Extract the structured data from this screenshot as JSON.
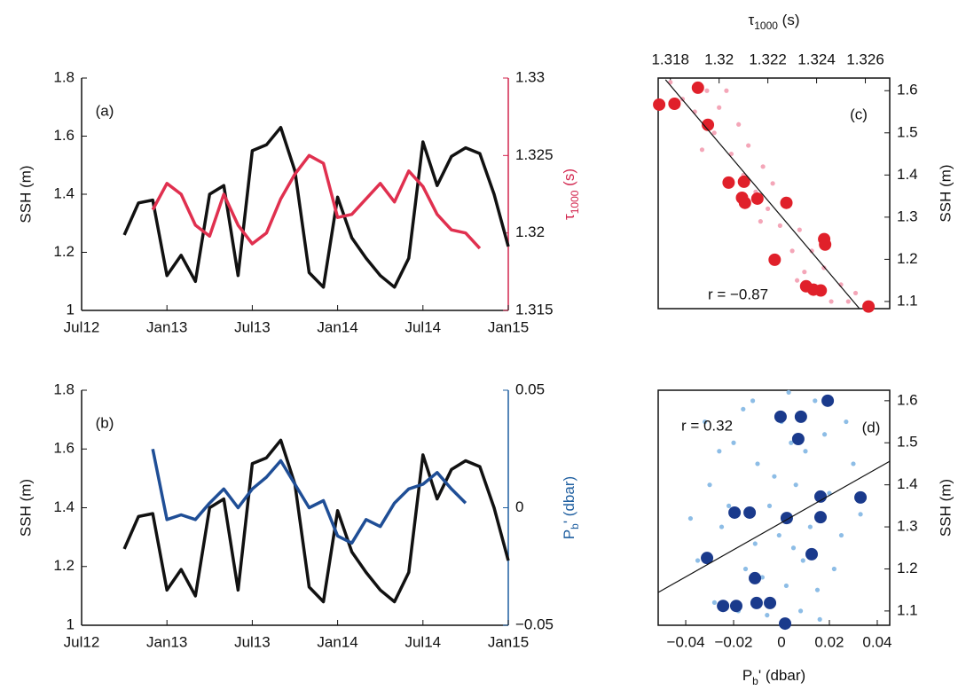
{
  "chart_data": [
    {
      "type": "line",
      "panel": "(a)",
      "ylabel": "SSH (m)",
      "y2label": {
        "main": "τ",
        "sub": "1000",
        "rest": " (s)"
      },
      "x": [
        "2012-10",
        "2012-11",
        "2012-12",
        "2013-01",
        "2013-02",
        "2013-03",
        "2013-04",
        "2013-05",
        "2013-06",
        "2013-07",
        "2013-08",
        "2013-09",
        "2013-10",
        "2013-11",
        "2013-12",
        "2014-01",
        "2014-02",
        "2014-03",
        "2014-04",
        "2014-05",
        "2014-06",
        "2014-07",
        "2014-08",
        "2014-09",
        "2014-10",
        "2014-11",
        "2014-12",
        "2015-01"
      ],
      "xlim": [
        "2012-07",
        "2015-01"
      ],
      "xticks": [
        {
          "value": "2012-07",
          "label": "Jul12"
        },
        {
          "value": "2013-01",
          "label": "Jan13"
        },
        {
          "value": "2013-07",
          "label": "Jul13"
        },
        {
          "value": "2014-01",
          "label": "Jan14"
        },
        {
          "value": "2014-07",
          "label": "Jul14"
        },
        {
          "value": "2015-01",
          "label": "Jan15"
        }
      ],
      "ylim": [
        1,
        1.8
      ],
      "yticks": [
        1,
        1.2,
        1.4,
        1.6,
        1.8
      ],
      "y2lim": [
        1.315,
        1.33
      ],
      "y2ticks": [
        1.315,
        1.32,
        1.325,
        1.33
      ],
      "y2color": "#d2264e",
      "series": [
        {
          "color": "#111111",
          "values": [
            1.26,
            1.37,
            1.38,
            1.12,
            1.19,
            1.1,
            1.4,
            1.43,
            1.12,
            1.55,
            1.57,
            1.63,
            1.48,
            1.13,
            1.08,
            1.39,
            1.25,
            1.18,
            1.12,
            1.08,
            1.18,
            1.58,
            1.43,
            1.53,
            1.56,
            1.54,
            1.4,
            1.22
          ]
        },
        {
          "color": "#e0304f",
          "axis": "y2",
          "values": [
            null,
            null,
            1.3215,
            1.3232,
            1.3225,
            1.3205,
            1.3198,
            1.3225,
            1.3205,
            1.3193,
            1.32,
            1.3222,
            1.3238,
            1.325,
            1.3245,
            1.321,
            1.3212,
            1.3222,
            1.3232,
            1.322,
            1.324,
            1.323,
            1.3212,
            1.3202,
            1.32,
            1.319,
            null,
            null
          ]
        }
      ]
    },
    {
      "type": "line",
      "panel": "(b)",
      "ylabel": "SSH (m)",
      "y2label": {
        "main": "P",
        "sub": "b",
        "rest": "' (dbar)"
      },
      "x": [
        "2012-10",
        "2012-11",
        "2012-12",
        "2013-01",
        "2013-02",
        "2013-03",
        "2013-04",
        "2013-05",
        "2013-06",
        "2013-07",
        "2013-08",
        "2013-09",
        "2013-10",
        "2013-11",
        "2013-12",
        "2014-01",
        "2014-02",
        "2014-03",
        "2014-04",
        "2014-05",
        "2014-06",
        "2014-07",
        "2014-08",
        "2014-09",
        "2014-10",
        "2014-11",
        "2014-12",
        "2015-01"
      ],
      "xlim": [
        "2012-07",
        "2015-01"
      ],
      "xticks": [
        {
          "value": "2012-07",
          "label": "Jul12"
        },
        {
          "value": "2013-01",
          "label": "Jan13"
        },
        {
          "value": "2013-07",
          "label": "Jul13"
        },
        {
          "value": "2014-01",
          "label": "Jan14"
        },
        {
          "value": "2014-07",
          "label": "Jul14"
        },
        {
          "value": "2015-01",
          "label": "Jan15"
        }
      ],
      "ylim": [
        1,
        1.8
      ],
      "yticks": [
        1,
        1.2,
        1.4,
        1.6,
        1.8
      ],
      "y2lim": [
        -0.05,
        0.05
      ],
      "y2ticks": [
        0.05,
        0,
        {
          "value": -0.05,
          "label": "−0.05"
        }
      ],
      "y2color": "#1f5fa0",
      "series": [
        {
          "color": "#111111",
          "values": [
            1.26,
            1.37,
            1.38,
            1.12,
            1.19,
            1.1,
            1.4,
            1.43,
            1.12,
            1.55,
            1.57,
            1.63,
            1.48,
            1.13,
            1.08,
            1.39,
            1.25,
            1.18,
            1.12,
            1.08,
            1.18,
            1.58,
            1.43,
            1.53,
            1.56,
            1.54,
            1.4,
            1.22
          ]
        },
        {
          "color": "#1f4e96",
          "axis": "y2",
          "values": [
            null,
            null,
            0.025,
            -0.005,
            -0.003,
            -0.005,
            0.002,
            0.008,
            0,
            0.008,
            0.013,
            0.02,
            0.01,
            0,
            0.003,
            -0.012,
            -0.015,
            -0.005,
            -0.008,
            0.002,
            0.008,
            0.01,
            0.015,
            0.008,
            0.002,
            null,
            null,
            null
          ]
        }
      ]
    },
    {
      "type": "scatter",
      "panel": "(c)",
      "annotation": "r = −0.87",
      "xlabel": {
        "main": "τ",
        "sub": "1000",
        "rest": " (s)"
      },
      "ylabel": "SSH (m)",
      "xaxis_position": "top",
      "yaxis_position": "right",
      "xlim": [
        1.3175,
        1.327
      ],
      "xticks": [
        1.318,
        1.32,
        1.322,
        1.324,
        1.326
      ],
      "ylim": [
        1.083,
        1.63
      ],
      "yticks": [
        1.1,
        1.2,
        1.3,
        1.4,
        1.5,
        1.6
      ],
      "series": [
        {
          "color": "#f4a6b8",
          "size": "small",
          "x": [
            1.318,
            1.3185,
            1.319,
            1.3195,
            1.3198,
            1.32,
            1.3205,
            1.3208,
            1.321,
            1.3212,
            1.3215,
            1.3218,
            1.322,
            1.3222,
            1.3225,
            1.3228,
            1.323,
            1.3233,
            1.3235,
            1.3238,
            1.324,
            1.3243,
            1.3246,
            1.325,
            1.3253,
            1.3256,
            1.3193,
            1.3203,
            1.3217,
            1.3232
          ],
          "values": [
            1.62,
            1.58,
            1.55,
            1.6,
            1.5,
            1.56,
            1.45,
            1.52,
            1.4,
            1.47,
            1.36,
            1.42,
            1.32,
            1.38,
            1.28,
            1.33,
            1.22,
            1.27,
            1.17,
            1.22,
            1.13,
            1.18,
            1.1,
            1.14,
            1.1,
            1.12,
            1.46,
            1.6,
            1.29,
            1.15
          ]
        },
        {
          "color": "#e0202a",
          "size": "large",
          "x": [
            1.31754,
            1.31817,
            1.31913,
            1.31954,
            1.32039,
            1.32102,
            1.32094,
            1.32106,
            1.32157,
            1.32276,
            1.32431,
            1.32435,
            1.32228,
            1.32357,
            1.32387,
            1.32417,
            1.32613
          ],
          "values": [
            1.567,
            1.569,
            1.607,
            1.519,
            1.382,
            1.384,
            1.346,
            1.334,
            1.344,
            1.334,
            1.248,
            1.235,
            1.199,
            1.136,
            1.128,
            1.126,
            1.088
          ]
        }
      ],
      "fit_line": {
        "x": [
          1.3178,
          1.32576
        ],
        "y": [
          1.626,
          1.083
        ]
      }
    },
    {
      "type": "scatter",
      "panel": "(d)",
      "annotation": "r = 0.32",
      "xlabel": {
        "main": "P",
        "sub": "b",
        "rest": "' (dbar)"
      },
      "ylabel": "SSH (m)",
      "xaxis_position": "bottom",
      "yaxis_position": "right",
      "xlim": [
        -0.0515,
        0.0452
      ],
      "xticks": [
        {
          "value": -0.04,
          "label": "−0.04"
        },
        {
          "value": -0.02,
          "label": "−0.02"
        },
        0,
        0.02,
        0.04
      ],
      "ylim": [
        1.066,
        1.625
      ],
      "yticks": [
        1.1,
        1.2,
        1.3,
        1.4,
        1.5,
        1.6
      ],
      "series": [
        {
          "color": "#8dbde6",
          "size": "small",
          "x": [
            -0.03,
            -0.025,
            -0.02,
            -0.015,
            -0.01,
            -0.005,
            0,
            0.005,
            0.01,
            0.015,
            0.02,
            0.025,
            -0.035,
            -0.028,
            -0.018,
            -0.012,
            -0.008,
            -0.003,
            0.003,
            0.008,
            0.012,
            0.018,
            0.022,
            0.03,
            0.033,
            -0.022,
            -0.016,
            -0.006,
            0.002,
            0.006,
            -0.032,
            -0.026,
            0.014,
            -0.001,
            0.009,
            0.016,
            -0.011,
            0.027,
            -0.038,
            0.004
          ],
          "values": [
            1.4,
            1.3,
            1.5,
            1.2,
            1.45,
            1.35,
            1.55,
            1.25,
            1.48,
            1.15,
            1.38,
            1.28,
            1.22,
            1.12,
            1.1,
            1.6,
            1.18,
            1.42,
            1.62,
            1.1,
            1.3,
            1.52,
            1.2,
            1.45,
            1.33,
            1.35,
            1.58,
            1.09,
            1.16,
            1.4,
            1.55,
            1.48,
            1.6,
            1.28,
            1.22,
            1.08,
            1.26,
            1.55,
            1.32,
            1.5
          ]
        },
        {
          "color": "#1a3a8c",
          "size": "large",
          "x": [
            0.0193,
            -0.0004,
            0.0081,
            0.007,
            0.033,
            0.0163,
            -0.0133,
            -0.0196,
            0.0022,
            0.0163,
            0.0126,
            -0.0311,
            -0.0111,
            -0.0244,
            -0.0189,
            -0.0104,
            -0.0048,
            0.0015
          ],
          "values": [
            1.6,
            1.562,
            1.562,
            1.509,
            1.37,
            1.372,
            1.334,
            1.334,
            1.321,
            1.323,
            1.235,
            1.226,
            1.178,
            1.112,
            1.112,
            1.119,
            1.119,
            1.07
          ]
        }
      ],
      "fit_line": {
        "x": [
          -0.0515,
          0.0452
        ],
        "y": [
          1.144,
          1.456
        ]
      }
    }
  ]
}
